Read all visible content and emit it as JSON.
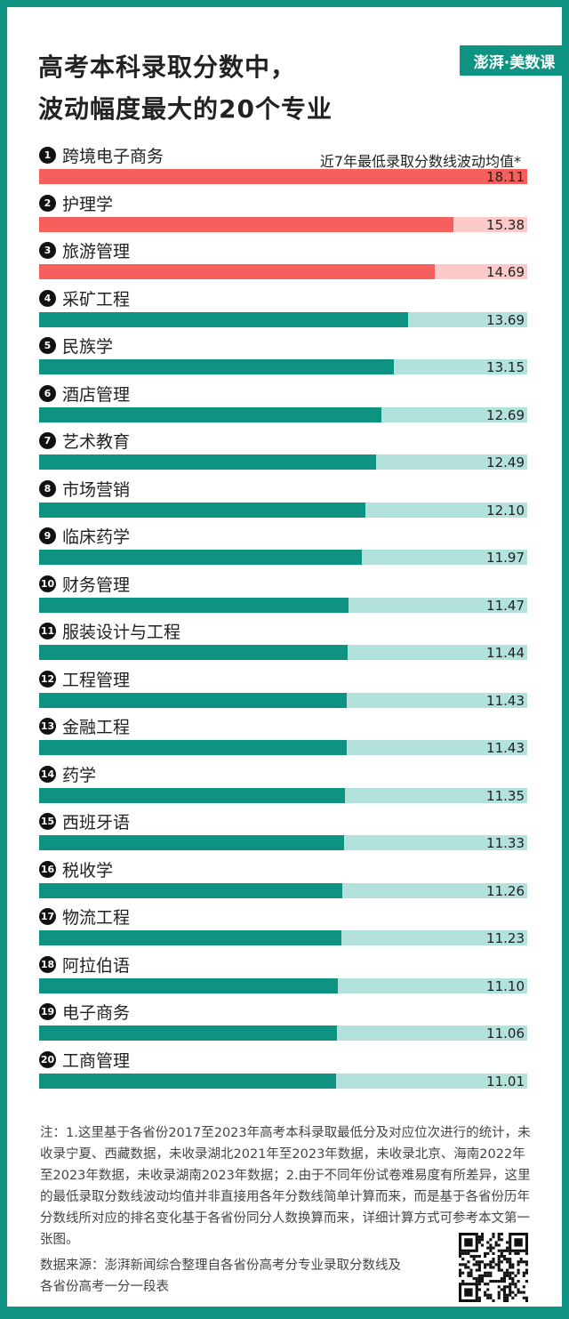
{
  "title_line1": "高考本科录取分数中，",
  "title_line2": "波动幅度最大的20个专业",
  "logo_text": "澎湃·美数课",
  "colors": {
    "frame": "#0e9383",
    "red": "#f65f5b",
    "red_light": "#fbc9c7",
    "green": "#0e9383",
    "green_light": "#b3e1db"
  },
  "chart_data": {
    "type": "bar",
    "orientation": "horizontal",
    "title": "高考本科录取分数中，波动幅度最大的20个专业",
    "legend": "近7年最低录取分数线波动均值*",
    "xlim": [
      0,
      18.11
    ],
    "ranks": [
      "1",
      "2",
      "3",
      "4",
      "5",
      "6",
      "7",
      "8",
      "9",
      "10",
      "11",
      "12",
      "13",
      "14",
      "15",
      "16",
      "17",
      "18",
      "19",
      "20"
    ],
    "categories": [
      "跨境电子商务",
      "护理学",
      "旅游管理",
      "采矿工程",
      "民族学",
      "酒店管理",
      "艺术教育",
      "市场营销",
      "临床药学",
      "财务管理",
      "服装设计与工程",
      "工程管理",
      "金融工程",
      "药学",
      "西班牙语",
      "税收学",
      "物流工程",
      "阿拉伯语",
      "电子商务",
      "工商管理"
    ],
    "values": [
      18.11,
      15.38,
      14.69,
      13.69,
      13.15,
      12.69,
      12.49,
      12.1,
      11.97,
      11.47,
      11.44,
      11.43,
      11.43,
      11.35,
      11.33,
      11.26,
      11.23,
      11.1,
      11.06,
      11.01
    ],
    "labels": [
      "18.11",
      "15.38",
      "14.69",
      "13.69",
      "13.15",
      "12.69",
      "12.49",
      "12.10",
      "11.97",
      "11.47",
      "11.44",
      "11.43",
      "11.43",
      "11.35",
      "11.33",
      "11.26",
      "11.23",
      "11.10",
      "11.06",
      "11.01"
    ],
    "highlight_top": 3
  },
  "note": "注：1.这里基于各省份2017至2023年高考本科录取最低分及对应位次进行的统计，未收录宁夏、西藏数据，未收录湖北2021年至2023年数据，未收录北京、海南2022年至2023年数据，未收录湖南2023年数据；2.由于不同年份试卷难易度有所差异，这里的最低录取分数线波动均值并非直接用各年分数线简单计算而来，而是基于各省份历年分数线所对应的排名变化基于各省份同分人数换算而来，详细计算方式可参考本文第一张图。",
  "source": "数据来源：澎湃新闻综合整理自各省份高考分专业录取分数线及各省份高考一分一段表"
}
